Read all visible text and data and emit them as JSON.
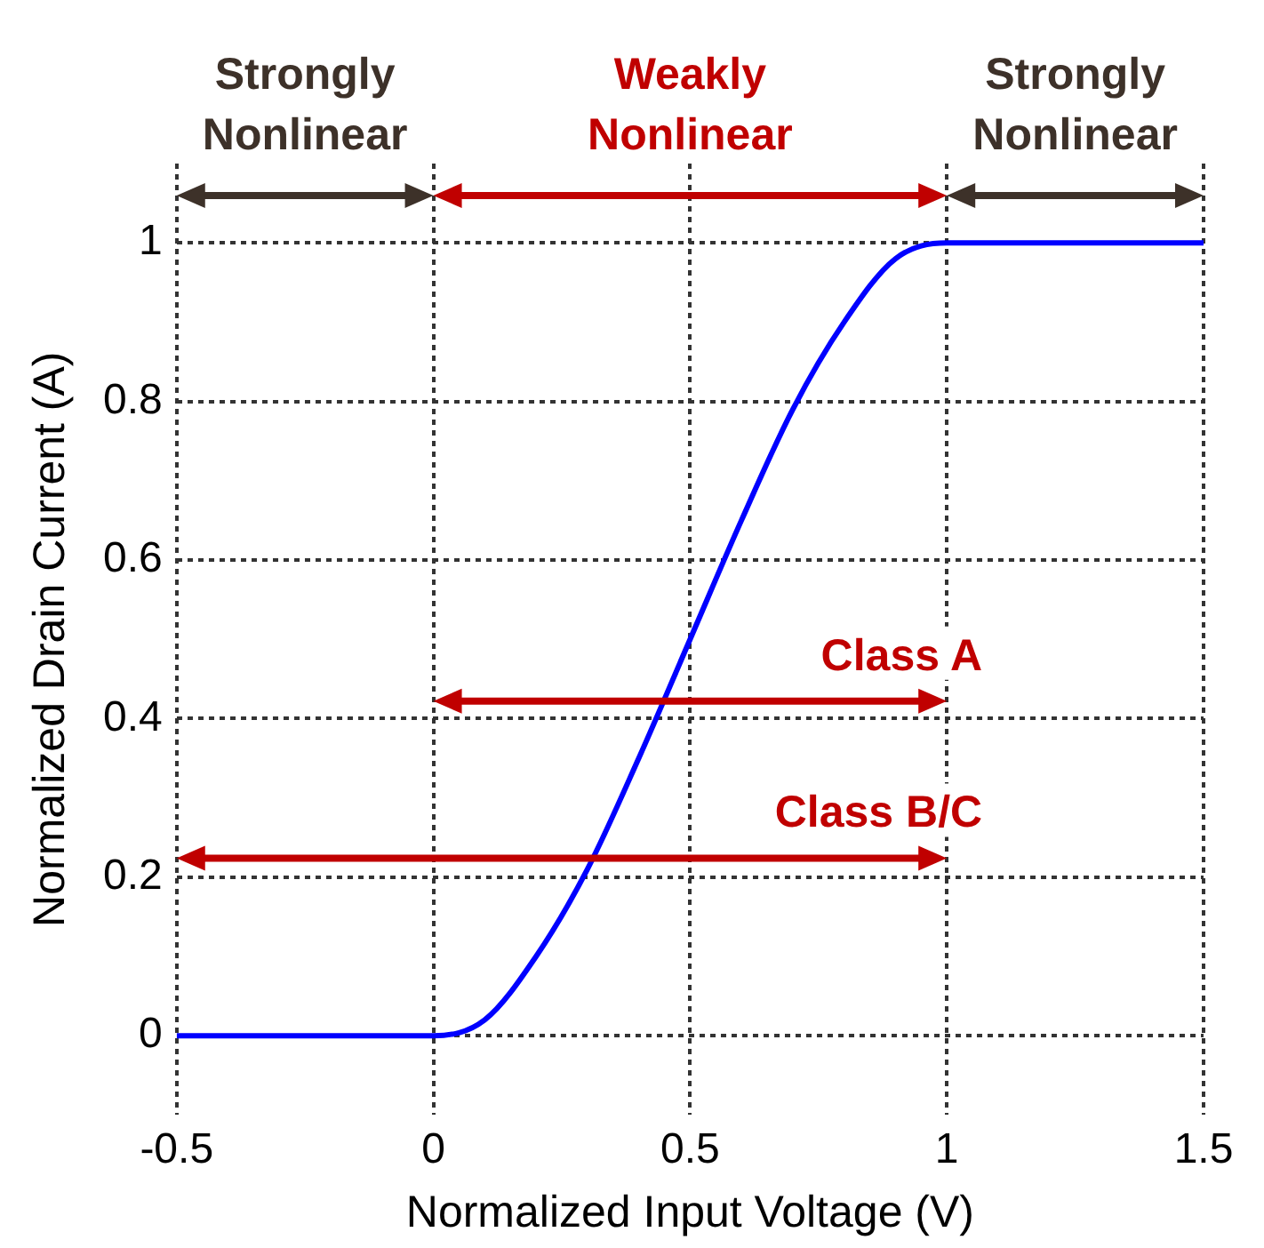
{
  "chart_data": {
    "type": "line",
    "xlabel": "Normalized Input Voltage (V)",
    "ylabel": "Normalized Drain Current (A)",
    "x": [
      -0.5,
      0,
      0.1,
      0.2,
      0.3,
      0.4,
      0.5,
      0.6,
      0.7,
      0.8,
      0.9,
      1,
      1.5
    ],
    "series": [
      {
        "color": "#0000ff",
        "values": [
          0,
          0,
          0.02,
          0.1,
          0.21,
          0.35,
          0.5,
          0.65,
          0.79,
          0.9,
          0.98,
          1,
          1
        ]
      }
    ],
    "xlim": [
      -0.5,
      1.5
    ],
    "xticks": [
      -0.5,
      0,
      0.5,
      1,
      1.5
    ],
    "ylim": [
      -0.1,
      1.1
    ],
    "yticks": [
      0,
      0.2,
      0.4,
      0.6,
      0.8,
      1
    ],
    "grid": true,
    "legend": false,
    "marker": "none",
    "line_style": "solid",
    "annotations": [
      "Strongly Nonlinear",
      "Weakly Nonlinear",
      "Strongly Nonlinear",
      "Class A",
      "Class B/C"
    ]
  }
}
